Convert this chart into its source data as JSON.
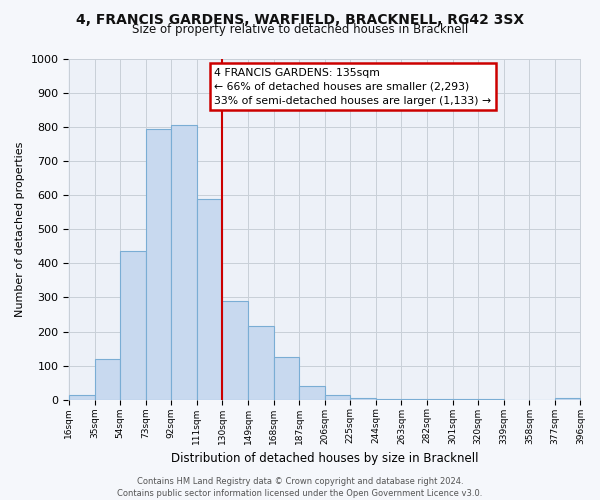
{
  "title": "4, FRANCIS GARDENS, WARFIELD, BRACKNELL, RG42 3SX",
  "subtitle": "Size of property relative to detached houses in Bracknell",
  "xlabel": "Distribution of detached houses by size in Bracknell",
  "ylabel": "Number of detached properties",
  "bin_labels": [
    "16sqm",
    "35sqm",
    "54sqm",
    "73sqm",
    "92sqm",
    "111sqm",
    "130sqm",
    "149sqm",
    "168sqm",
    "187sqm",
    "206sqm",
    "225sqm",
    "244sqm",
    "263sqm",
    "282sqm",
    "301sqm",
    "320sqm",
    "339sqm",
    "358sqm",
    "377sqm",
    "396sqm"
  ],
  "bar_values": [
    15,
    120,
    435,
    795,
    805,
    590,
    290,
    215,
    125,
    40,
    15,
    5,
    3,
    2,
    2,
    1,
    1,
    0,
    0,
    5
  ],
  "bar_color": "#c8d9ef",
  "bar_edge_color": "#7aadd4",
  "vline_color": "#cc0000",
  "annotation_title": "4 FRANCIS GARDENS: 135sqm",
  "annotation_line1": "← 66% of detached houses are smaller (2,293)",
  "annotation_line2": "33% of semi-detached houses are larger (1,133) →",
  "annotation_box_color": "#ffffff",
  "annotation_box_edge": "#cc0000",
  "ylim": [
    0,
    1000
  ],
  "yticks": [
    0,
    100,
    200,
    300,
    400,
    500,
    600,
    700,
    800,
    900,
    1000
  ],
  "footer_line1": "Contains HM Land Registry data © Crown copyright and database right 2024.",
  "footer_line2": "Contains public sector information licensed under the Open Government Licence v3.0.",
  "bin_edges": [
    16,
    35,
    54,
    73,
    92,
    111,
    130,
    149,
    168,
    187,
    206,
    225,
    244,
    263,
    282,
    301,
    320,
    339,
    358,
    377,
    396
  ],
  "background_color": "#edf1f8",
  "fig_background": "#f5f7fb"
}
